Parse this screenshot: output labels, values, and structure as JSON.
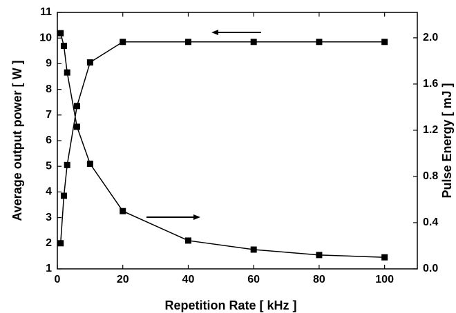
{
  "chart_data": {
    "type": "line",
    "x_label": "Repetition Rate [ kHz ]",
    "y_label": "Average output power [ W ]",
    "y2_label": "Pulse Energy [ mJ ]",
    "x": [
      1,
      2,
      3,
      6,
      10,
      20,
      40,
      60,
      80,
      100
    ],
    "series": [
      {
        "name": "Average output power",
        "color": "#000000",
        "values": [
          2.0,
          3.85,
          5.05,
          7.35,
          9.05,
          9.85,
          9.85,
          9.85,
          9.85,
          9.85
        ]
      },
      {
        "name": "Pulse Energy",
        "color": "#000000",
        "axis": "y2",
        "values": [
          2.04,
          1.93,
          1.7,
          1.23,
          0.91,
          0.5,
          0.245,
          0.167,
          0.12,
          0.1
        ]
      }
    ],
    "xlim": [
      0,
      110
    ],
    "xticks": [
      0,
      20,
      40,
      60,
      80,
      100
    ],
    "ylim": [
      1,
      11
    ],
    "yticks": [
      1,
      2,
      3,
      4,
      5,
      6,
      7,
      8,
      9,
      10,
      11
    ],
    "y2lim": [
      0,
      2.22
    ],
    "y2ticks": [
      {
        "value": 0,
        "label": "0.0"
      },
      0.4,
      0.8,
      1.2,
      1.6,
      {
        "value": 2,
        "label": "2.0"
      }
    ]
  }
}
